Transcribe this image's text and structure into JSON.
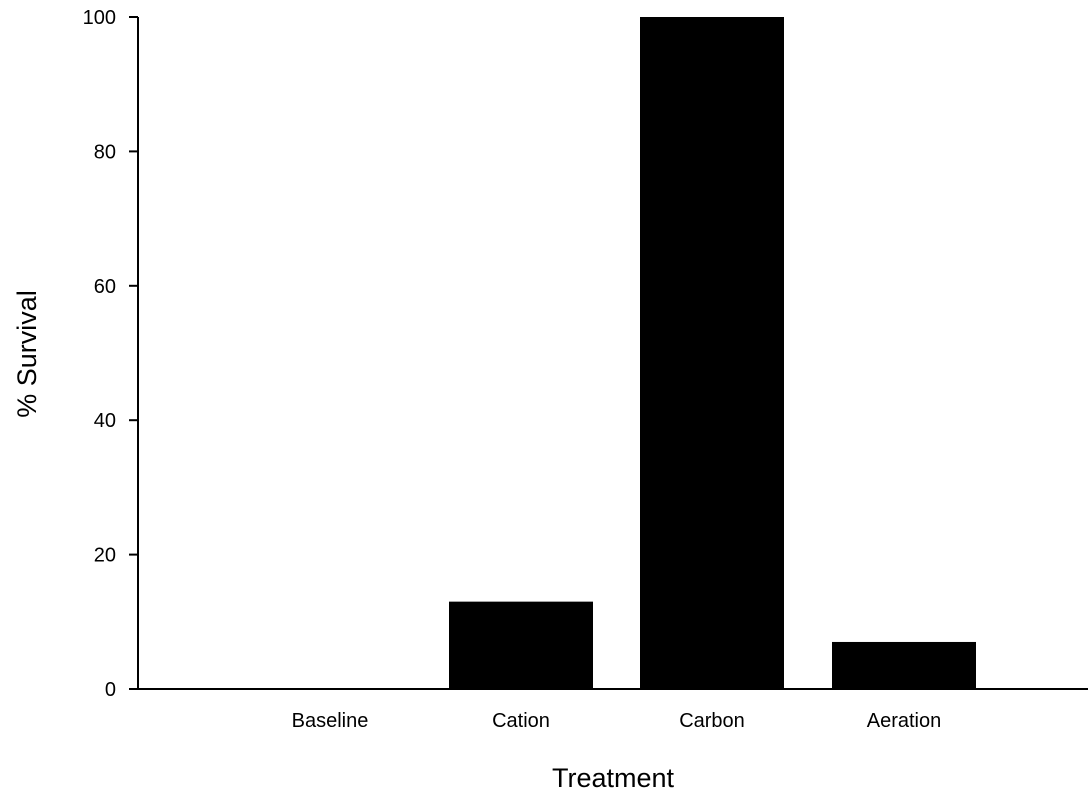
{
  "chart_data": {
    "type": "bar",
    "title": "",
    "xlabel": "Treatment",
    "ylabel": "% Survival",
    "categories": [
      "Baseline",
      "Cation",
      "Carbon",
      "Aeration"
    ],
    "values": [
      0,
      13,
      100,
      7
    ],
    "ylim": [
      0,
      100
    ],
    "yticks": [
      0,
      20,
      40,
      60,
      80,
      100
    ],
    "grid": false,
    "legend": "none",
    "bar_color": "#000000"
  }
}
